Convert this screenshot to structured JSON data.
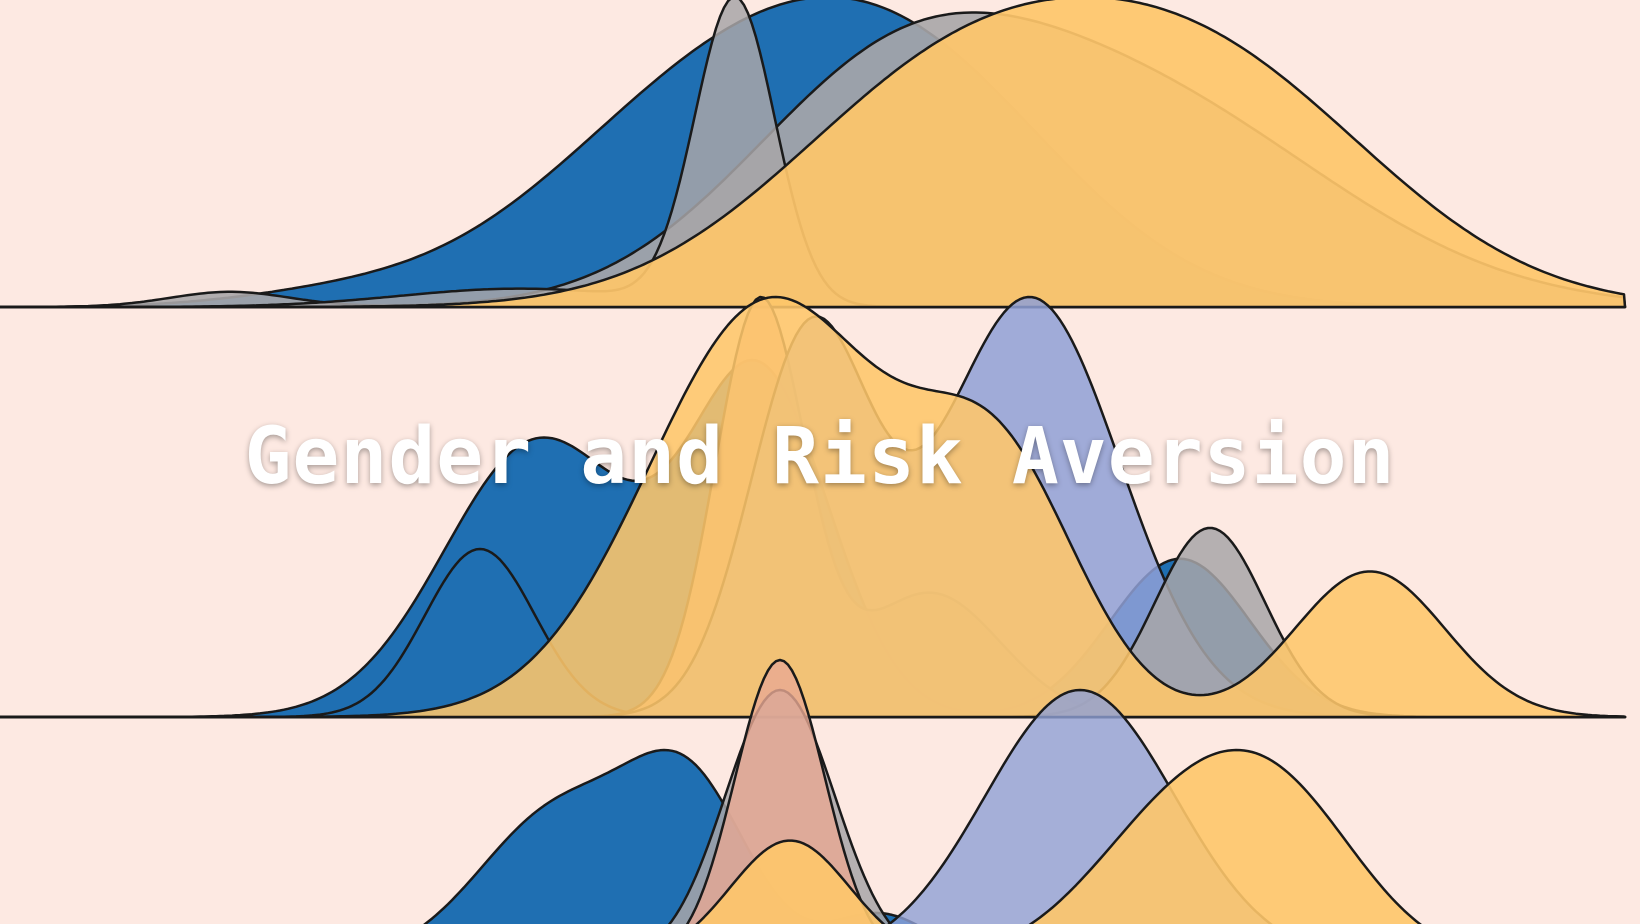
{
  "title": "Gender and Risk Aversion",
  "colors": {
    "background": "#fde9e2",
    "blue": "#1f6fb2",
    "taupe": "#a8a6a8",
    "lilac": "#8fa0d6",
    "salmon": "#e8a994",
    "gold": "#fec66a",
    "outline": "#1a1a1a"
  },
  "chart_data": {
    "type": "ridgeline",
    "x_range": [
      0,
      1640
    ],
    "grid": false,
    "legend": "none",
    "rows": [
      {
        "baseline": 1,
        "curves": [
          {
            "color": "blue",
            "opacity": 1.0,
            "peaks": [
              {
                "x": 720,
                "h": 1.0,
                "w": 170
              },
              {
                "x": 930,
                "h": 0.85,
                "w": 150
              },
              {
                "x": 330,
                "h": 0.05,
                "w": 100
              }
            ]
          },
          {
            "color": "taupe",
            "opacity": 0.9,
            "peaks": [
              {
                "x": 230,
                "h": 0.07,
                "w": 60
              },
              {
                "x": 880,
                "h": 0.8,
                "w": 150
              },
              {
                "x": 1130,
                "h": 0.95,
                "w": 200
              }
            ]
          },
          {
            "color": "taupe",
            "opacity": 0.85,
            "peaks": [
              {
                "x": 735,
                "h": 1.0,
                "w": 40
              },
              {
                "x": 520,
                "h": 0.06,
                "w": 120
              }
            ]
          },
          {
            "color": "gold",
            "opacity": 0.92,
            "peaks": [
              {
                "x": 950,
                "h": 1.0,
                "w": 170
              },
              {
                "x": 1220,
                "h": 1.0,
                "w": 170
              }
            ]
          }
        ]
      },
      {
        "baseline": 2,
        "curves": [
          {
            "color": "blue",
            "opacity": 1.0,
            "peaks": [
              {
                "x": 540,
                "h": 0.7,
                "w": 95
              },
              {
                "x": 760,
                "h": 0.85,
                "w": 70
              },
              {
                "x": 1180,
                "h": 0.4,
                "w": 70
              }
            ]
          },
          {
            "color": "blue",
            "opacity": 1.0,
            "peaks": [
              {
                "x": 480,
                "h": 0.4,
                "w": 55
              }
            ]
          },
          {
            "color": "salmon",
            "opacity": 0.85,
            "peaks": [
              {
                "x": 760,
                "h": 1.0,
                "w": 45
              },
              {
                "x": 930,
                "h": 0.3,
                "w": 70
              }
            ]
          },
          {
            "color": "lilac",
            "opacity": 0.85,
            "peaks": [
              {
                "x": 810,
                "h": 0.9,
                "w": 60
              },
              {
                "x": 1030,
                "h": 1.0,
                "w": 90
              }
            ]
          },
          {
            "color": "taupe",
            "opacity": 0.85,
            "peaks": [
              {
                "x": 1210,
                "h": 0.45,
                "w": 55
              }
            ]
          },
          {
            "color": "gold",
            "opacity": 0.88,
            "peaks": [
              {
                "x": 770,
                "h": 1.0,
                "w": 120
              },
              {
                "x": 1000,
                "h": 0.55,
                "w": 80
              },
              {
                "x": 1370,
                "h": 0.35,
                "w": 75
              }
            ]
          }
        ]
      },
      {
        "baseline": 3,
        "curves": [
          {
            "color": "blue",
            "opacity": 1.0,
            "peaks": [
              {
                "x": 560,
                "h": 0.65,
                "w": 80
              },
              {
                "x": 690,
                "h": 0.7,
                "w": 60
              },
              {
                "x": 880,
                "h": 0.2,
                "w": 50
              }
            ]
          },
          {
            "color": "taupe",
            "opacity": 0.85,
            "peaks": [
              {
                "x": 780,
                "h": 0.9,
                "w": 55
              }
            ]
          },
          {
            "color": "salmon",
            "opacity": 0.8,
            "peaks": [
              {
                "x": 780,
                "h": 1.0,
                "w": 45
              }
            ]
          },
          {
            "color": "lilac",
            "opacity": 0.8,
            "peaks": [
              {
                "x": 1080,
                "h": 0.9,
                "w": 95
              }
            ]
          },
          {
            "color": "gold",
            "opacity": 0.9,
            "peaks": [
              {
                "x": 790,
                "h": 0.6,
                "w": 60
              },
              {
                "x": 1180,
                "h": 0.7,
                "w": 90
              },
              {
                "x": 1290,
                "h": 0.6,
                "w": 80
              }
            ]
          }
        ]
      }
    ]
  }
}
